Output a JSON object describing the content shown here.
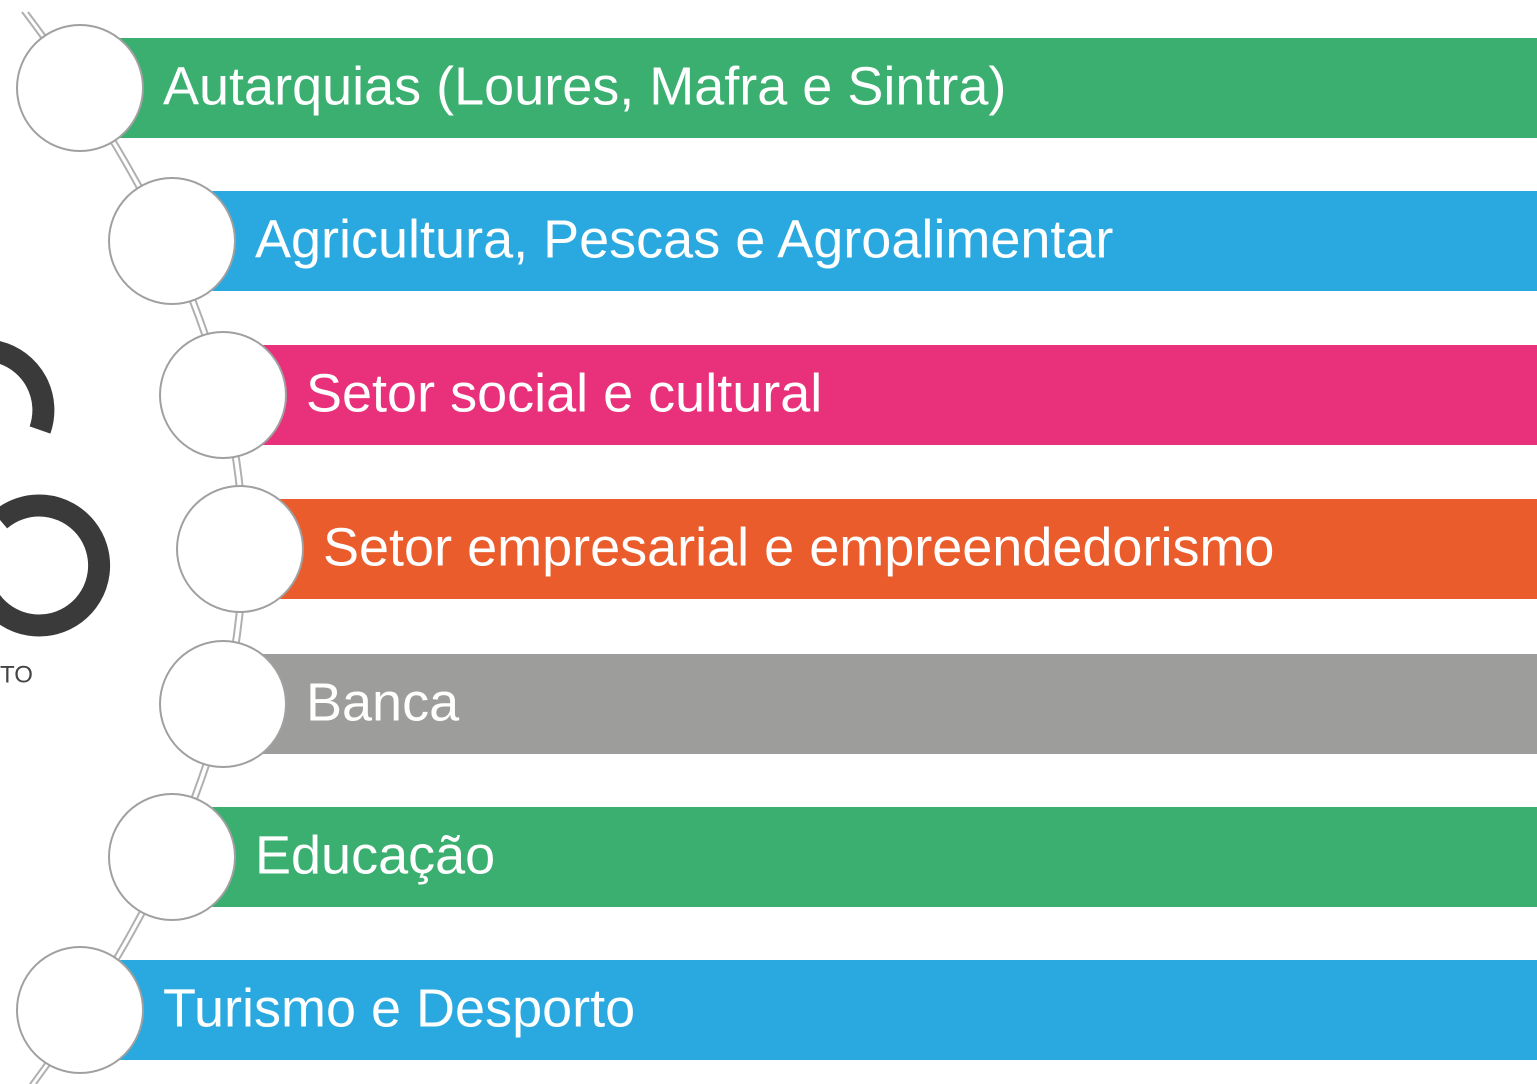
{
  "logo_text": "TO",
  "items": [
    {
      "label": "Autarquias (Loures, Mafra e Sintra)"
    },
    {
      "label": "Agricultura, Pescas e Agroalimentar"
    },
    {
      "label": "Setor social e cultural"
    },
    {
      "label": "Setor empresarial e empreendedorismo"
    },
    {
      "label": "Banca"
    },
    {
      "label": "Educação"
    },
    {
      "label": "Turismo e Desporto"
    }
  ]
}
